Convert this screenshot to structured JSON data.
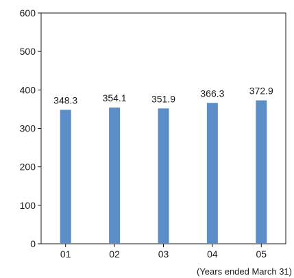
{
  "chart_data": {
    "type": "bar",
    "categories": [
      "01",
      "02",
      "03",
      "04",
      "05"
    ],
    "values": [
      348.3,
      354.1,
      351.9,
      366.3,
      372.9
    ],
    "value_labels": [
      "348.3",
      "354.1",
      "351.9",
      "366.3",
      "372.9"
    ],
    "ylim": [
      0,
      600
    ],
    "yticks": [
      0,
      100,
      200,
      300,
      400,
      500,
      600
    ],
    "ytick_labels": [
      "0",
      "100",
      "200",
      "300",
      "400",
      "500",
      "600"
    ],
    "title": "",
    "xlabel": "",
    "ylabel": "",
    "note": "(Years ended March 31)",
    "grid": false,
    "bar_color": "#5b8ec6"
  }
}
